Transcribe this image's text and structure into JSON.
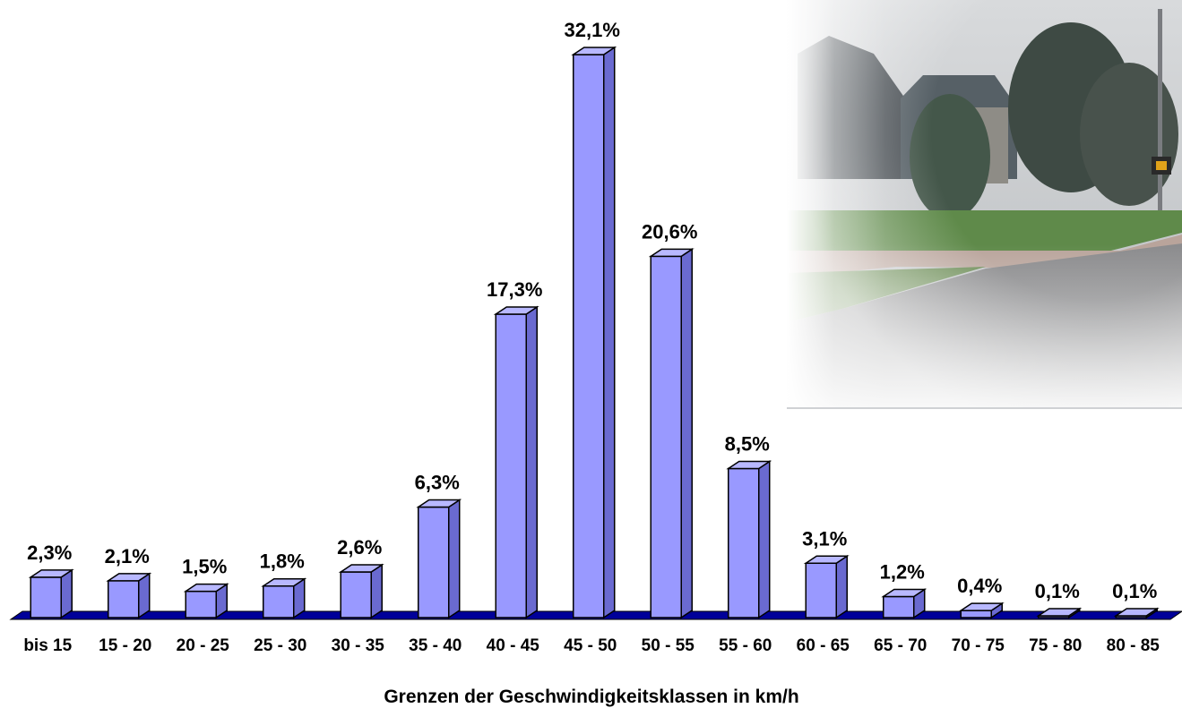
{
  "chart_data": {
    "type": "bar",
    "title": "",
    "xlabel": "Grenzen der Geschwindigkeitsklassen in km/h",
    "ylabel": "",
    "categories": [
      "bis 15",
      "15 - 20",
      "20 - 25",
      "25 - 30",
      "30 - 35",
      "35 - 40",
      "40 - 45",
      "45 - 50",
      "50 - 55",
      "55 - 60",
      "60 - 65",
      "65 - 70",
      "70 - 75",
      "75 - 80",
      "80 - 85"
    ],
    "values": [
      2.3,
      2.1,
      1.5,
      1.8,
      2.6,
      6.3,
      17.3,
      32.1,
      20.6,
      8.5,
      3.1,
      1.2,
      0.4,
      0.1,
      0.1
    ],
    "data_labels": [
      "2,3%",
      "2,1%",
      "1,5%",
      "1,8%",
      "2,6%",
      "6,3%",
      "17,3%",
      "32,1%",
      "20,6%",
      "8,5%",
      "3,1%",
      "1,2%",
      "0,4%",
      "0,1%",
      "0,1%"
    ],
    "ylim": [
      0,
      32.1
    ],
    "grid": false,
    "legend": "none",
    "style": "3d-bar",
    "colors": {
      "bar_front": "#9999ff",
      "bar_side": "#6a6ad0",
      "bar_top": "#b8b8ff",
      "floor": "#000099",
      "outline": "#000000"
    }
  },
  "photo": {
    "icon": "street-scene-photo"
  }
}
